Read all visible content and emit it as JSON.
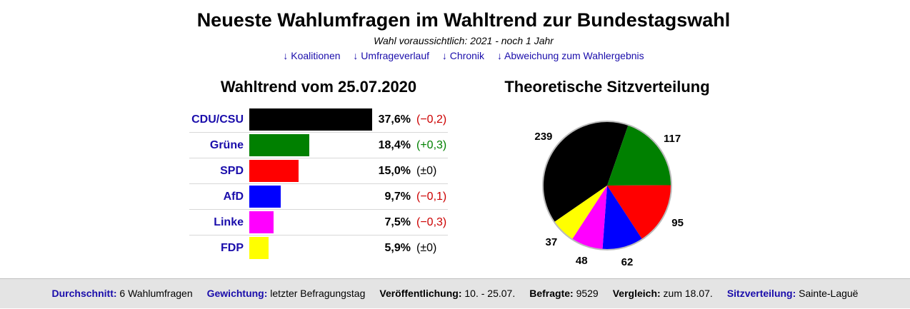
{
  "header": {
    "title": "Neueste Wahlumfragen im Wahltrend zur Bundestagswahl",
    "subtitle": "Wahl voraussichtlich: 2021 - noch 1 Jahr",
    "links": [
      "↓ Koalitionen",
      "↓ Umfrageverlauf",
      "↓ Chronik",
      "↓ Abweichung zum Wahlergebnis"
    ]
  },
  "trend": {
    "title": "Wahltrend vom 25.07.2020",
    "rows": [
      {
        "party": "CDU/CSU",
        "percent": "37,6%",
        "change": "(−0,2)",
        "value": 37.6,
        "color": "#000000",
        "change_color": "#cc0000"
      },
      {
        "party": "Grüne",
        "percent": "18,4%",
        "change": "(+0,3)",
        "value": 18.4,
        "color": "#008000",
        "change_color": "#008000"
      },
      {
        "party": "SPD",
        "percent": "15,0%",
        "change": "(±0)",
        "value": 15.0,
        "color": "#ff0000",
        "change_color": "#000000"
      },
      {
        "party": "AfD",
        "percent": "9,7%",
        "change": "(−0,1)",
        "value": 9.7,
        "color": "#0000ff",
        "change_color": "#cc0000"
      },
      {
        "party": "Linke",
        "percent": "7,5%",
        "change": "(−0,3)",
        "value": 7.5,
        "color": "#ff00ff",
        "change_color": "#cc0000"
      },
      {
        "party": "FDP",
        "percent": "5,9%",
        "change": "(±0)",
        "value": 5.9,
        "color": "#ffff00",
        "change_color": "#000000"
      }
    ]
  },
  "seats": {
    "title": "Theoretische Sitzverteilung",
    "slices": [
      {
        "label": "239",
        "value": 239,
        "color": "#000000"
      },
      {
        "label": "117",
        "value": 117,
        "color": "#008000"
      },
      {
        "label": "95",
        "value": 95,
        "color": "#ff0000"
      },
      {
        "label": "62",
        "value": 62,
        "color": "#0000ff"
      },
      {
        "label": "48",
        "value": 48,
        "color": "#ff00ff"
      },
      {
        "label": "37",
        "value": 37,
        "color": "#ffff00"
      }
    ]
  },
  "footer": {
    "items": [
      {
        "key": "Durchschnitt:",
        "value": "6 Wahlumfragen",
        "link": true
      },
      {
        "key": "Gewichtung:",
        "value": "letzter Befragungstag",
        "link": true
      },
      {
        "key": "Veröffentlichung:",
        "value": "10. - 25.07.",
        "link": false
      },
      {
        "key": "Befragte:",
        "value": "9529",
        "link": false
      },
      {
        "key": "Vergleich:",
        "value": "zum 18.07.",
        "link": false
      },
      {
        "key": "Sitzverteilung:",
        "value": "Sainte-Laguë",
        "link": true
      }
    ]
  }
}
